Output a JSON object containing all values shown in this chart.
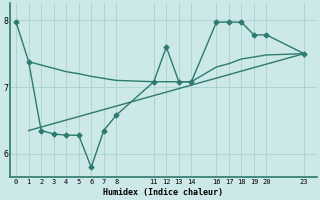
{
  "xlabel": "Humidex (Indice chaleur)",
  "bg_color": "#cce8e8",
  "line_color": "#2d7a6e",
  "grid_color": "#aed4d4",
  "xlim": [
    -0.5,
    24
  ],
  "ylim": [
    5.65,
    8.25
  ],
  "yticks": [
    6,
    7,
    8
  ],
  "xticks": [
    0,
    1,
    2,
    3,
    4,
    5,
    6,
    7,
    8,
    11,
    12,
    13,
    14,
    16,
    17,
    18,
    19,
    20,
    23
  ],
  "zigzag_x": [
    0,
    1,
    2,
    3,
    4,
    5,
    6,
    7,
    8,
    11,
    12,
    13,
    14,
    16,
    17,
    18,
    19,
    20,
    23
  ],
  "zigzag_y": [
    7.97,
    7.38,
    6.35,
    6.3,
    6.28,
    6.28,
    5.8,
    6.35,
    6.58,
    7.08,
    7.6,
    7.08,
    7.08,
    7.97,
    7.97,
    7.97,
    7.78,
    7.78,
    7.5
  ],
  "flat_x": [
    1,
    2,
    3,
    4,
    5,
    6,
    7,
    8,
    11,
    12,
    13,
    14,
    16,
    17,
    18,
    19,
    20,
    23
  ],
  "flat_y": [
    7.38,
    7.33,
    7.28,
    7.23,
    7.2,
    7.16,
    7.13,
    7.1,
    7.08,
    7.08,
    7.08,
    7.08,
    7.3,
    7.35,
    7.42,
    7.45,
    7.48,
    7.5
  ],
  "trend_x": [
    1,
    23
  ],
  "trend_y": [
    6.35,
    7.5
  ],
  "ms": 2.5,
  "lw": 1.0
}
